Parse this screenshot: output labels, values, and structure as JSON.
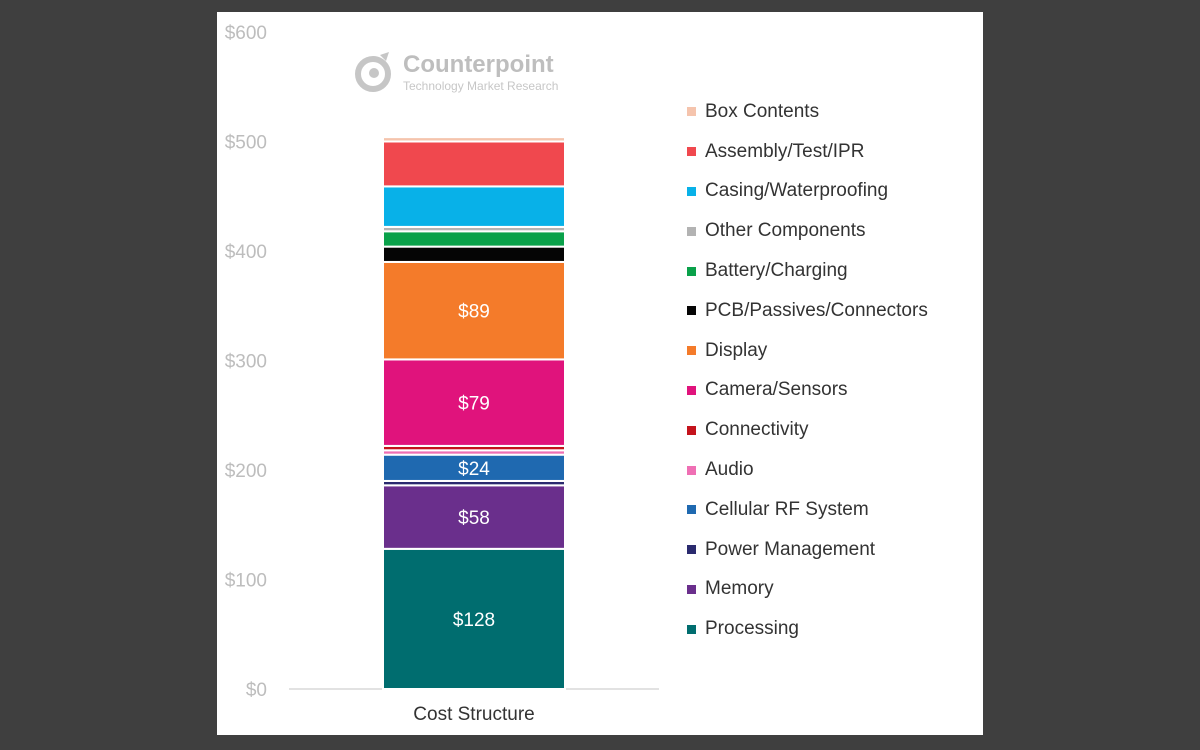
{
  "brand": {
    "name": "Counterpoint",
    "tagline": "Technology Market Research"
  },
  "chart_data": {
    "type": "bar",
    "stacked": true,
    "categories": [
      "Cost Structure"
    ],
    "ylim": [
      0,
      600
    ],
    "yticks": [
      0,
      100,
      200,
      300,
      400,
      500,
      600
    ],
    "ytick_labels": [
      "$0",
      "$100",
      "$200",
      "$300",
      "$400",
      "$500",
      "$600"
    ],
    "xlabel": "",
    "ylabel": "",
    "grid": false,
    "legend_position": "right",
    "series": [
      {
        "name": "Processing",
        "values": [
          128
        ],
        "color": "#006d6f",
        "label": "$128"
      },
      {
        "name": "Memory",
        "values": [
          58
        ],
        "color": "#6a2f8c",
        "label": "$58"
      },
      {
        "name": "Power Management",
        "values": [
          4
        ],
        "color": "#2a2a6e",
        "label": ""
      },
      {
        "name": "Cellular RF System",
        "values": [
          24
        ],
        "color": "#1f69b0",
        "label": "$24"
      },
      {
        "name": "Audio",
        "values": [
          4
        ],
        "color": "#ef6fb4",
        "label": ""
      },
      {
        "name": "Connectivity",
        "values": [
          4
        ],
        "color": "#c4131c",
        "label": ""
      },
      {
        "name": "Camera/Sensors",
        "values": [
          79
        ],
        "color": "#e0137c",
        "label": "$79"
      },
      {
        "name": "Display",
        "values": [
          89
        ],
        "color": "#f47b2a",
        "label": "$89"
      },
      {
        "name": "PCB/Passives/Connectors",
        "values": [
          14
        ],
        "color": "#050505",
        "label": ""
      },
      {
        "name": "Battery/Charging",
        "values": [
          14
        ],
        "color": "#0aa14a",
        "label": ""
      },
      {
        "name": "Other Components",
        "values": [
          4
        ],
        "color": "#b3b3b3",
        "label": ""
      },
      {
        "name": "Casing/Waterproofing",
        "values": [
          37
        ],
        "color": "#08b1e8",
        "label": ""
      },
      {
        "name": "Assembly/Test/IPR",
        "values": [
          41
        ],
        "color": "#f0484e",
        "label": ""
      },
      {
        "name": "Box Contents",
        "values": [
          4
        ],
        "color": "#f5c4ad",
        "label": ""
      }
    ]
  }
}
